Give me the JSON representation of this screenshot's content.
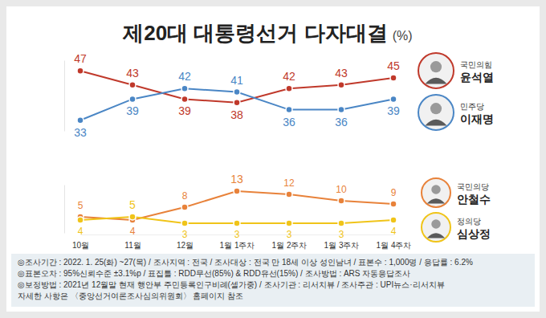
{
  "chart_data": [
    {
      "type": "line",
      "title": "제20대 대통령선거 다자대결",
      "y_label": "(%)",
      "categories": [
        null,
        null,
        null,
        null,
        null,
        null,
        null
      ],
      "series": [
        {
          "name": "윤석열",
          "party": "국민의힘",
          "color": "#c0392b",
          "values": [
            47,
            43,
            39,
            38,
            42,
            43,
            45
          ]
        },
        {
          "name": "이재명",
          "party": "민주당",
          "color": "#4a86c5",
          "values": [
            33,
            39,
            42,
            41,
            36,
            36,
            39
          ]
        }
      ],
      "ylim": [
        30,
        50
      ],
      "tick_labels": false,
      "data_labels": true,
      "marker": "circle",
      "grid": false
    },
    {
      "type": "line",
      "categories": [
        "10월",
        "11월",
        "12월",
        "1월 1주차",
        "1월 2주차",
        "1월 3주차",
        "1월 4주차"
      ],
      "series": [
        {
          "name": "안철수",
          "party": "국민의당",
          "color": "#e8823a",
          "values": [
            5,
            4,
            8,
            13,
            12,
            10,
            9
          ]
        },
        {
          "name": "심상정",
          "party": "정의당",
          "color": "#f0c419",
          "values": [
            4,
            5,
            3,
            3,
            3,
            3,
            4
          ]
        }
      ],
      "ylim": [
        0,
        15
      ],
      "tick_labels": "x",
      "data_labels": true,
      "marker": "circle",
      "grid": false
    }
  ],
  "footnotes": [
    "◎조사기간 : 2022. 1. 25(화) ~27(목) / 조사지역 : 전국 / 조사대상 : 전국 만 18세 이상 성인남녀 / 표본수 : 1,000명 / 응답률 : 6.2%",
    "◎표본오차 : 95%신뢰수준 ±3.1%p / 표집틀 : RDD무선(85%) & RDD유선(15%) / 조사방법 : ARS 자동응답조사",
    "◎보정방법 : 2021년 12월말 현재 행안부 주민등록인구비례(셀가중) / 조사기관 : 리서치뷰 / 조사주관 : UPI뉴스·리서치뷰",
    "자세한 사항은 〈중앙선거여론조사심의위원회〉 홈페이지 참조"
  ]
}
